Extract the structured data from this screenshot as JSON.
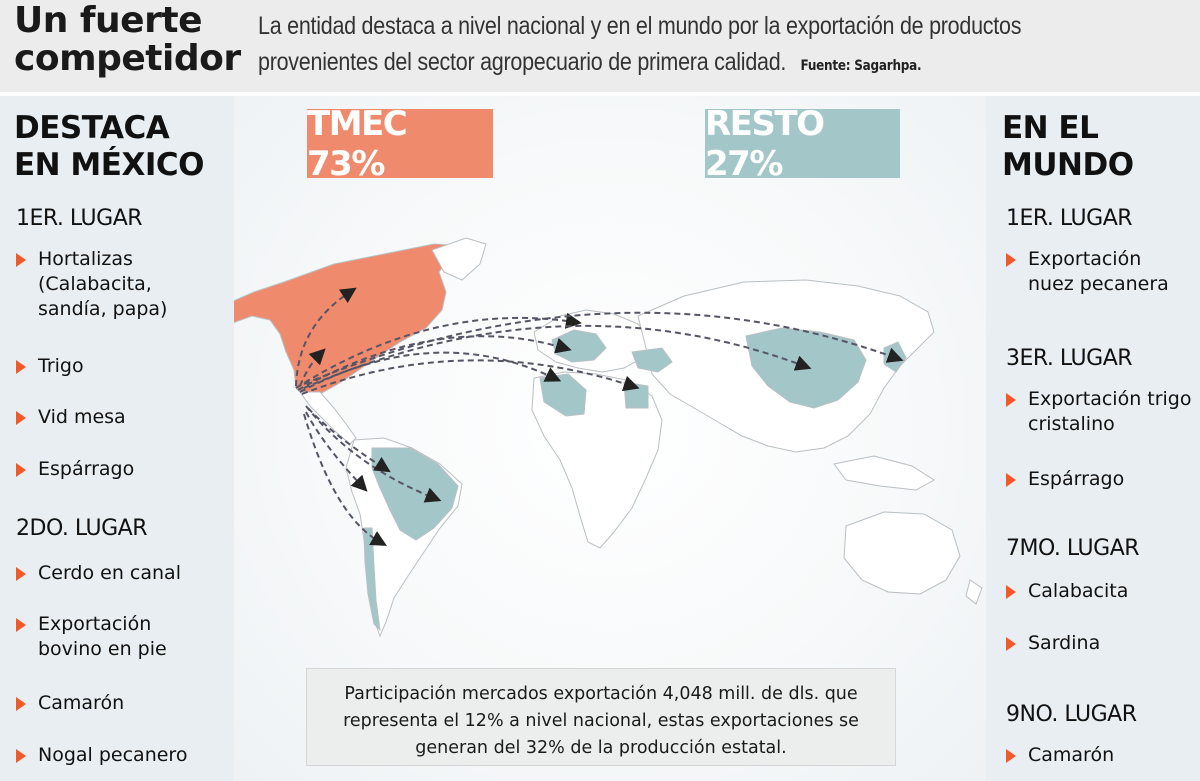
{
  "header": {
    "title": "Un fuerte competidor",
    "description": "La entidad destaca a nivel nacional y en el mundo por la exportación de productos provenientes del sector agropecuario de primera calidad.",
    "source": "Fuente: Sagarhpa."
  },
  "left": {
    "title": "DESTACA EN MÉXICO",
    "groups": [
      {
        "rank": "1ER. LUGAR",
        "items": [
          "Hortalizas (Calabacita, sandía, papa)",
          "Trigo",
          "Vid mesa",
          "Espárrago"
        ]
      },
      {
        "rank": "2DO. LUGAR",
        "items": [
          "Cerdo en canal",
          "Exportación bovino en pie",
          "Camarón",
          "Nogal pecanero"
        ]
      }
    ]
  },
  "right": {
    "title": "EN EL MUNDO",
    "groups": [
      {
        "rank": "1ER. LUGAR",
        "items": [
          "Exportación nuez pecanera"
        ]
      },
      {
        "rank": "3ER. LUGAR",
        "items": [
          "Exportación trigo cristalino",
          "Espárrago"
        ]
      },
      {
        "rank": "7MO. LUGAR",
        "items": [
          "Calabacita",
          "Sardina"
        ]
      },
      {
        "rank": "9NO. LUGAR",
        "items": [
          "Camarón"
        ]
      }
    ]
  },
  "map": {
    "tmec_label": "TMEC 73%",
    "resto_label": "RESTO 27%",
    "info_text": "Participación mercados exportación 4,048 mill. de dls. que representa el 12% a nivel nacional, estas exportaciones se generan del 32% de la producción estatal."
  },
  "colors": {
    "tmec": "#f08a6c",
    "resto": "#a3c7c9",
    "bullet": "#f05a2a",
    "land": "#ffffff",
    "land_stroke": "#b9bfc3"
  }
}
